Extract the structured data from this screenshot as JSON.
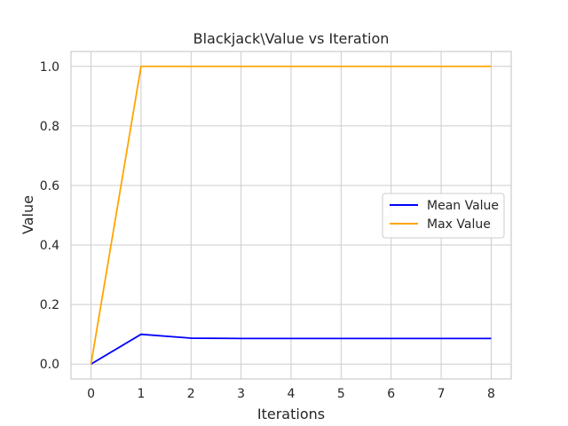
{
  "chart_data": {
    "type": "line",
    "title": "Blackjack\\Value vs Iteration",
    "xlabel": "Iterations",
    "ylabel": "Value",
    "x": [
      0,
      1,
      2,
      3,
      4,
      5,
      6,
      7,
      8
    ],
    "xlim": [
      -0.4,
      8.4
    ],
    "ylim": [
      -0.05,
      1.05
    ],
    "xticks": [
      0,
      1,
      2,
      3,
      4,
      5,
      6,
      7,
      8
    ],
    "yticks": [
      0.0,
      0.2,
      0.4,
      0.6,
      0.8,
      1.0
    ],
    "ytick_labels": [
      "0.0",
      "0.2",
      "0.4",
      "0.6",
      "0.8",
      "1.0"
    ],
    "grid": true,
    "legend_position": "center-right",
    "series": [
      {
        "name": "Mean Value",
        "color": "#0000ff",
        "values": [
          0.0,
          0.1,
          0.087,
          0.086,
          0.086,
          0.086,
          0.086,
          0.086,
          0.086
        ]
      },
      {
        "name": "Max Value",
        "color": "#ffa500",
        "values": [
          0.0,
          1.0,
          1.0,
          1.0,
          1.0,
          1.0,
          1.0,
          1.0,
          1.0
        ]
      }
    ]
  }
}
